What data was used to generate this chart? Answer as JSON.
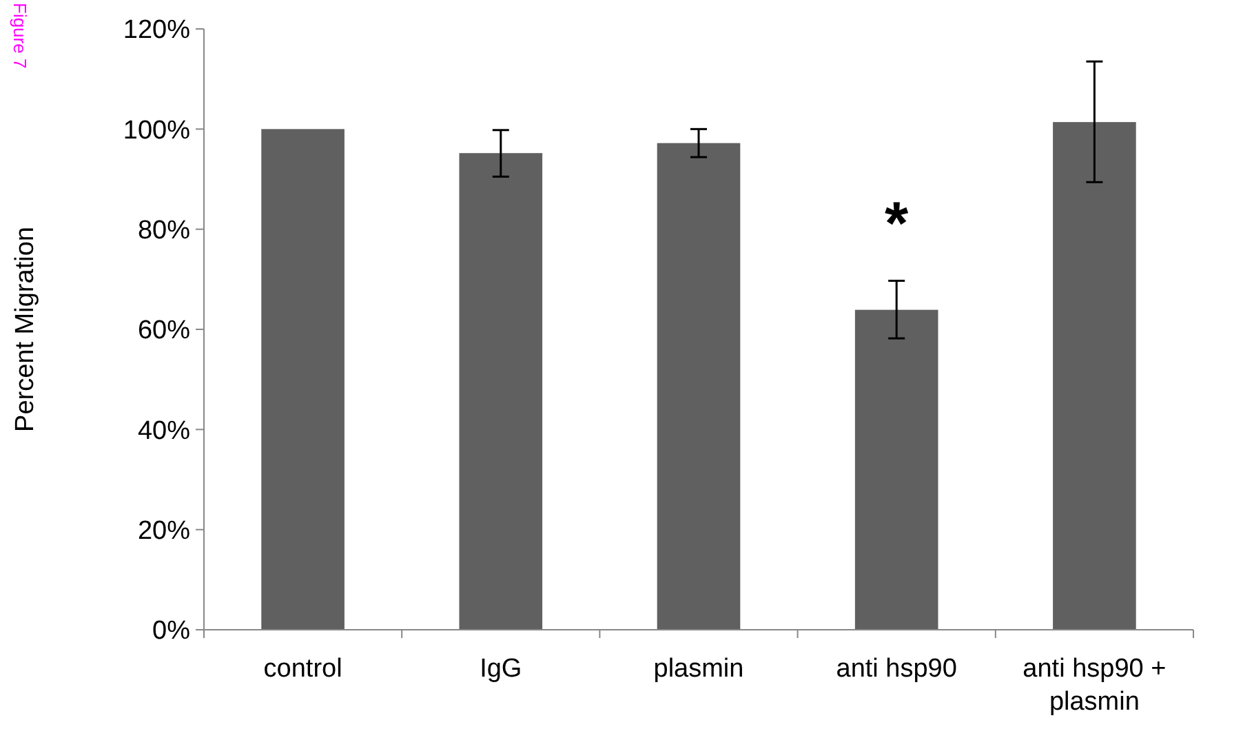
{
  "chart_data": {
    "type": "bar",
    "ylabel": "Percent Migration",
    "categories": [
      "control",
      "IgG",
      "plasmin",
      "anti hsp90",
      "anti hsp90 + plasmin"
    ],
    "values": [
      100,
      95.2,
      97.2,
      63.9,
      101.4
    ],
    "errors": [
      null,
      [
        90.5,
        99.8
      ],
      [
        94.4,
        100
      ],
      [
        58.2,
        69.7
      ],
      [
        89.4,
        113.5
      ]
    ],
    "color": "#606060",
    "ylim": [
      0,
      120
    ],
    "yticks": [
      {
        "value": 0,
        "label": "0%"
      },
      {
        "value": 20,
        "label": "20%"
      },
      {
        "value": 40,
        "label": "40%"
      },
      {
        "value": 60,
        "label": "60%"
      },
      {
        "value": 80,
        "label": "80%"
      },
      {
        "value": 100,
        "label": "100%"
      },
      {
        "value": 120,
        "label": "120%"
      }
    ],
    "grid": false,
    "annotations": [
      "*",
      "Figure 7"
    ]
  }
}
